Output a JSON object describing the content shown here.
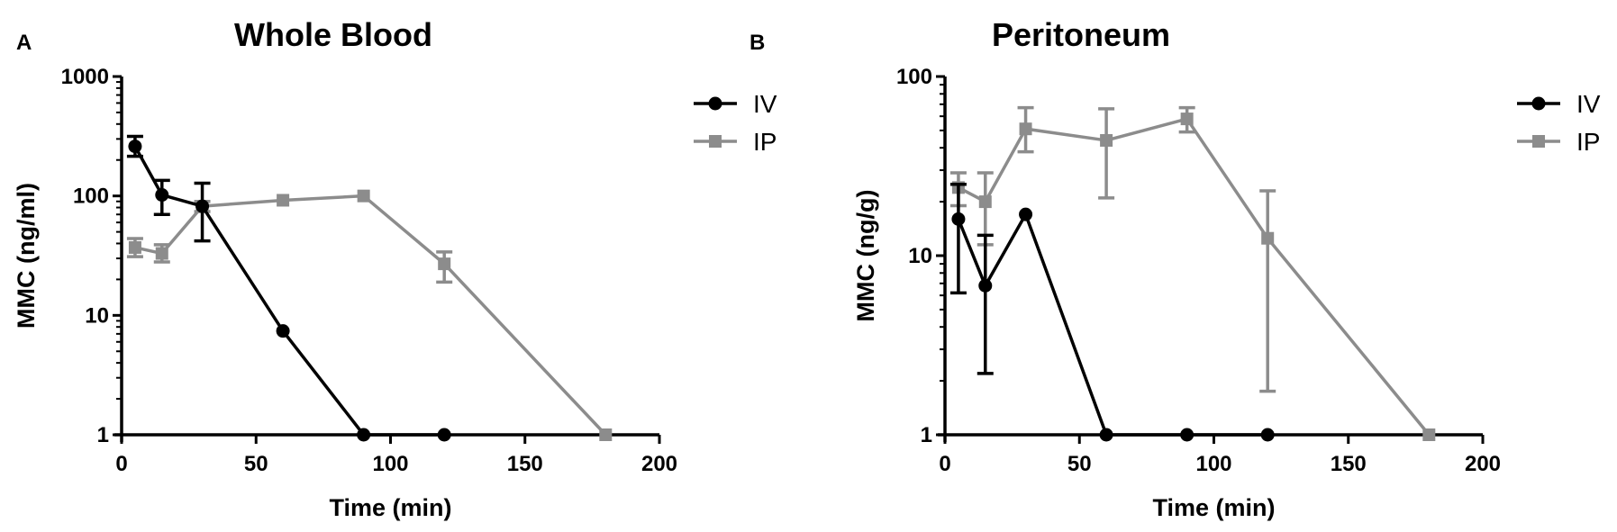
{
  "chart_data": [
    {
      "panel_label": "A",
      "type": "line",
      "title": "Whole Blood",
      "xlabel": "Time (min)",
      "ylabel": "MMC (ng/ml)",
      "xlim": [
        0,
        200
      ],
      "ylim": [
        1,
        1000
      ],
      "yscale": "log",
      "xticks": [
        "0",
        "50",
        "100",
        "150",
        "200"
      ],
      "yticks": [
        "1",
        "10",
        "100",
        "1000"
      ],
      "grid": false,
      "legend_position": "top-right",
      "series": [
        {
          "name": "IV",
          "color": "#000000",
          "marker": "circle",
          "x": [
            5,
            15,
            30,
            60,
            90,
            120
          ],
          "y": [
            260,
            102,
            82,
            7.4,
            1,
            1
          ],
          "error": [
            [
              215,
              315
            ],
            [
              70,
              135
            ],
            [
              42,
              128
            ],
            null,
            null,
            null
          ]
        },
        {
          "name": "IP",
          "color": "#8c8c8c",
          "marker": "square",
          "x": [
            5,
            15,
            30,
            60,
            90,
            120,
            180
          ],
          "y": [
            37,
            33,
            82,
            92,
            100,
            27,
            1
          ],
          "error": [
            [
              31,
              44
            ],
            [
              28,
              39
            ],
            [
              74,
              90
            ],
            null,
            null,
            [
              19,
              34
            ],
            null
          ]
        }
      ]
    },
    {
      "panel_label": "B",
      "type": "line",
      "title": "Peritoneum",
      "xlabel": "Time (min)",
      "ylabel": "MMC (ng/g)",
      "xlim": [
        0,
        200
      ],
      "ylim": [
        1,
        100
      ],
      "yscale": "log",
      "xticks": [
        "0",
        "50",
        "100",
        "150",
        "200"
      ],
      "yticks": [
        "1",
        "10",
        "100"
      ],
      "grid": false,
      "legend_position": "top-right",
      "series": [
        {
          "name": "IV",
          "color": "#000000",
          "marker": "circle",
          "x": [
            5,
            15,
            30,
            60,
            90,
            120
          ],
          "y": [
            16,
            6.8,
            17,
            1,
            1,
            1
          ],
          "error": [
            [
              6.2,
              25
            ],
            [
              2.2,
              13
            ],
            null,
            null,
            null,
            null
          ]
        },
        {
          "name": "IP",
          "color": "#8c8c8c",
          "marker": "square",
          "x": [
            5,
            15,
            30,
            60,
            90,
            120,
            180
          ],
          "y": [
            24,
            20,
            51,
            44,
            58,
            12.5,
            1
          ],
          "error": [
            [
              19,
              29
            ],
            [
              11.5,
              29
            ],
            [
              38,
              67
            ],
            [
              21,
              66
            ],
            [
              49,
              67
            ],
            [
              1.75,
              23
            ],
            null
          ]
        }
      ]
    }
  ]
}
